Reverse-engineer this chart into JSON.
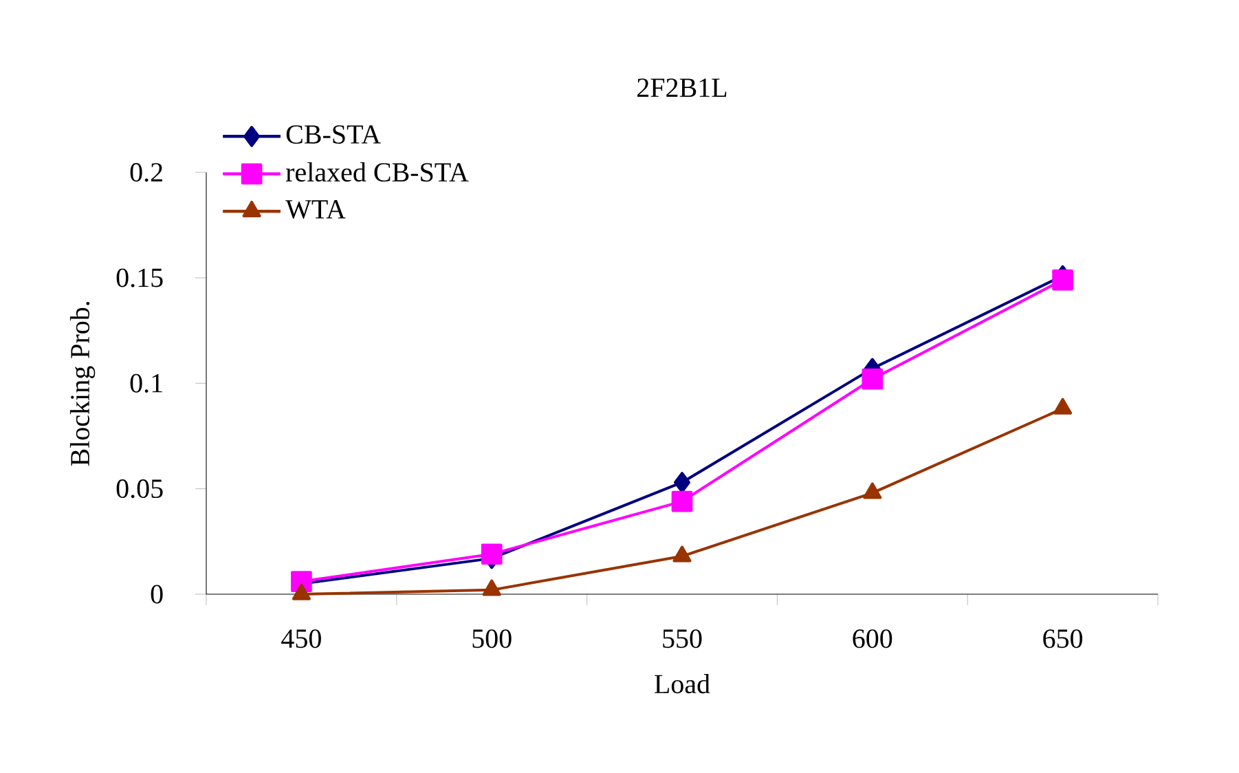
{
  "chart_data": {
    "type": "line",
    "title": "2F2B1L",
    "xlabel": "Load",
    "ylabel": "Blocking Prob.",
    "categories": [
      "450",
      "500",
      "550",
      "600",
      "650"
    ],
    "series": [
      {
        "name": "CB-STA",
        "color": "#000080",
        "marker": "diamond",
        "values": [
          0.005,
          0.017,
          0.053,
          0.107,
          0.151
        ]
      },
      {
        "name": "relaxed CB-STA",
        "color": "#ff00ff",
        "marker": "square",
        "values": [
          0.006,
          0.019,
          0.044,
          0.102,
          0.149
        ]
      },
      {
        "name": "WTA",
        "color": "#993300",
        "marker": "triangle",
        "values": [
          0.0,
          0.002,
          0.018,
          0.048,
          0.088
        ]
      }
    ],
    "ylim": [
      0,
      0.2
    ],
    "yticks": [
      0,
      0.05,
      0.1,
      0.15,
      0.2
    ],
    "legend": "top left"
  }
}
